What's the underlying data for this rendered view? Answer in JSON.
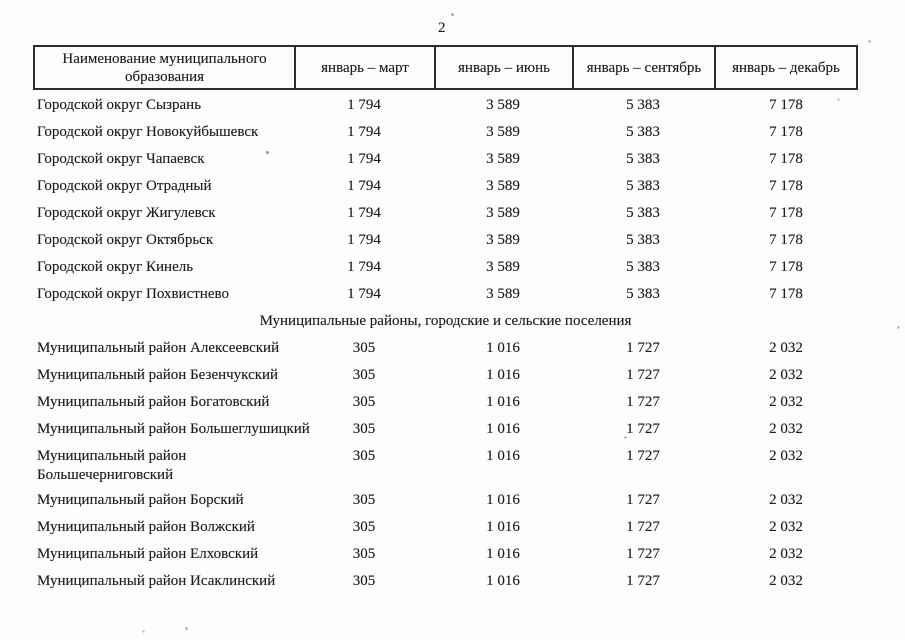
{
  "page": {
    "number": "2"
  },
  "table": {
    "columns": [
      "Наименование муниципального образования",
      "январь – март",
      "январь – июнь",
      "январь – сентябрь",
      "январь – декабрь"
    ],
    "sections": [
      {
        "title": "",
        "rows": [
          {
            "name": "Городской округ Сызрань",
            "values": [
              "1 794",
              "3 589",
              "5 383",
              "7 178"
            ]
          },
          {
            "name": "Городской округ Новокуйбышевск",
            "values": [
              "1 794",
              "3 589",
              "5 383",
              "7 178"
            ]
          },
          {
            "name": "Городской округ Чапаевск",
            "values": [
              "1 794",
              "3 589",
              "5 383",
              "7 178"
            ]
          },
          {
            "name": "Городской округ Отрадный",
            "values": [
              "1 794",
              "3 589",
              "5 383",
              "7 178"
            ]
          },
          {
            "name": "Городской округ Жигулевск",
            "values": [
              "1 794",
              "3 589",
              "5 383",
              "7 178"
            ]
          },
          {
            "name": "Городской округ Октябрьск",
            "values": [
              "1 794",
              "3 589",
              "5 383",
              "7 178"
            ]
          },
          {
            "name": "Городской округ Кинель",
            "values": [
              "1 794",
              "3 589",
              "5 383",
              "7 178"
            ]
          },
          {
            "name": "Городской округ Похвистнево",
            "values": [
              "1 794",
              "3 589",
              "5 383",
              "7 178"
            ]
          }
        ]
      },
      {
        "title": "Муниципальные районы, городские и сельские поселения",
        "rows": [
          {
            "name": "Муниципальный район Алексеевский",
            "values": [
              "305",
              "1 016",
              "1 727",
              "2 032"
            ]
          },
          {
            "name": "Муниципальный район Безенчукский",
            "values": [
              "305",
              "1 016",
              "1 727",
              "2 032"
            ]
          },
          {
            "name": "Муниципальный район Богатовский",
            "values": [
              "305",
              "1 016",
              "1 727",
              "2 032"
            ]
          },
          {
            "name": "Муниципальный район Большеглушицкий",
            "values": [
              "305",
              "1 016",
              "1 727",
              "2 032"
            ]
          },
          {
            "name": "Муниципальный район\nБольшечерниговский",
            "values": [
              "305",
              "1 016",
              "1 727",
              "2 032"
            ]
          },
          {
            "name": "Муниципальный район Борский",
            "values": [
              "305",
              "1 016",
              "1 727",
              "2 032"
            ]
          },
          {
            "name": "Муниципальный район Волжский",
            "values": [
              "305",
              "1 016",
              "1 727",
              "2 032"
            ]
          },
          {
            "name": "Муниципальный район Елховский",
            "values": [
              "305",
              "1 016",
              "1 727",
              "2 032"
            ]
          },
          {
            "name": "Муниципальный район Исаклинский",
            "values": [
              "305",
              "1 016",
              "1 727",
              "2 032"
            ]
          }
        ]
      }
    ]
  },
  "colors": {
    "ink": "#1b1b1b",
    "paper": "#fdfdfc",
    "border": "#2e2c2a"
  }
}
